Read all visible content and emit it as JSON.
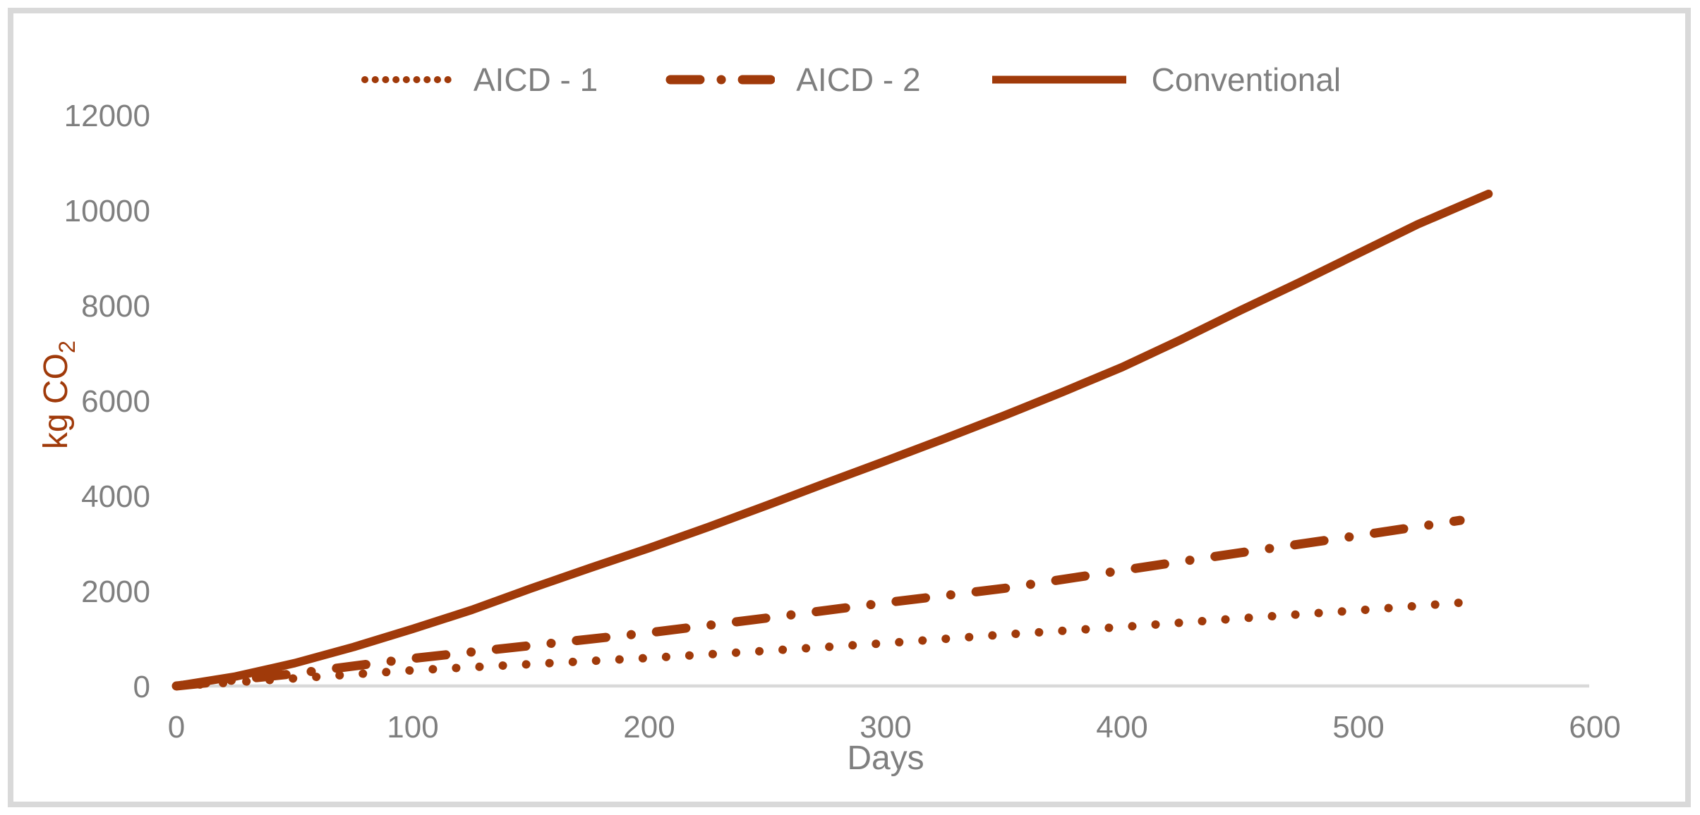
{
  "chart_data": {
    "type": "line",
    "title": "",
    "xlabel": "Days",
    "ylabel": "kg CO2",
    "ylabel_main": "kg CO",
    "ylabel_sub": "2",
    "xlim": [
      0,
      600
    ],
    "ylim": [
      0,
      12000
    ],
    "x_ticks": [
      0,
      100,
      200,
      300,
      400,
      500,
      600
    ],
    "y_ticks": [
      0,
      2000,
      4000,
      6000,
      8000,
      10000,
      12000
    ],
    "grid": false,
    "legend_position": "top-center",
    "series": [
      {
        "name": "AICD - 1",
        "style": "dotted",
        "x": [
          0,
          50,
          100,
          150,
          200,
          250,
          300,
          350,
          400,
          450,
          500,
          543
        ],
        "y": [
          0,
          160,
          330,
          460,
          590,
          740,
          900,
          1080,
          1240,
          1420,
          1590,
          1750
        ]
      },
      {
        "name": "AICD - 2",
        "style": "dash-dot",
        "x": [
          0,
          50,
          100,
          150,
          200,
          250,
          300,
          350,
          400,
          450,
          500,
          543
        ],
        "y": [
          0,
          260,
          580,
          850,
          1120,
          1430,
          1750,
          2050,
          2430,
          2800,
          3160,
          3480
        ]
      },
      {
        "name": "Conventional",
        "style": "solid",
        "x": [
          0,
          25,
          50,
          75,
          100,
          125,
          150,
          175,
          200,
          225,
          250,
          275,
          300,
          325,
          350,
          375,
          400,
          425,
          450,
          475,
          500,
          525,
          555
        ],
        "y": [
          0,
          200,
          480,
          820,
          1200,
          1600,
          2050,
          2480,
          2900,
          3340,
          3800,
          4270,
          4730,
          5200,
          5680,
          6180,
          6700,
          7280,
          7890,
          8480,
          9090,
          9700,
          10340
        ]
      }
    ],
    "colors": {
      "series_line": "#A03A0A",
      "tick_label": "#7F7F7F",
      "legend_text": "#7F7F7F",
      "axis_title": "#A03A0A",
      "axis_line": "#D9D9D9",
      "border": "#D9D9D9",
      "background": "#FFFFFF"
    }
  }
}
